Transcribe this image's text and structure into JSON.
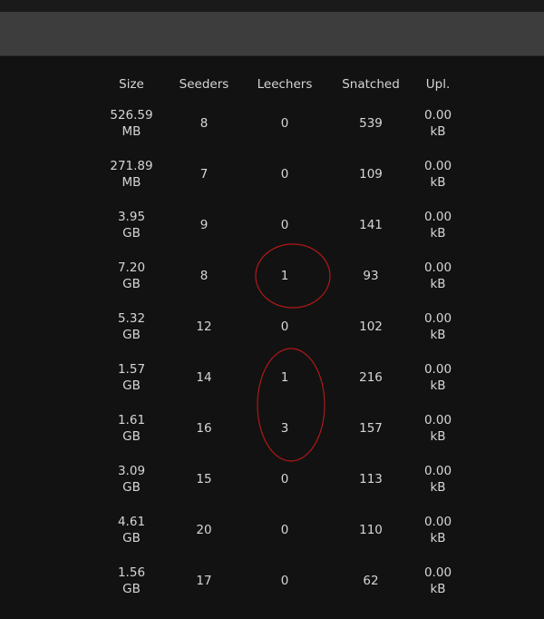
{
  "table": {
    "headers": [
      "Size",
      "Seeders",
      "Leechers",
      "Snatched",
      "Upl."
    ],
    "rows": [
      {
        "size": "526.59",
        "size_unit": "MB",
        "seeders": "8",
        "leechers": "0",
        "snatched": "539",
        "upl": "0.00",
        "upl_unit": "kB"
      },
      {
        "size": "271.89",
        "size_unit": "MB",
        "seeders": "7",
        "leechers": "0",
        "snatched": "109",
        "upl": "0.00",
        "upl_unit": "kB"
      },
      {
        "size": "3.95",
        "size_unit": "GB",
        "seeders": "9",
        "leechers": "0",
        "snatched": "141",
        "upl": "0.00",
        "upl_unit": "kB"
      },
      {
        "size": "7.20",
        "size_unit": "GB",
        "seeders": "8",
        "leechers": "1",
        "snatched": "93",
        "upl": "0.00",
        "upl_unit": "kB"
      },
      {
        "size": "5.32",
        "size_unit": "GB",
        "seeders": "12",
        "leechers": "0",
        "snatched": "102",
        "upl": "0.00",
        "upl_unit": "kB"
      },
      {
        "size": "1.57",
        "size_unit": "GB",
        "seeders": "14",
        "leechers": "1",
        "snatched": "216",
        "upl": "0.00",
        "upl_unit": "kB"
      },
      {
        "size": "1.61",
        "size_unit": "GB",
        "seeders": "16",
        "leechers": "3",
        "snatched": "157",
        "upl": "0.00",
        "upl_unit": "kB"
      },
      {
        "size": "3.09",
        "size_unit": "GB",
        "seeders": "15",
        "leechers": "0",
        "snatched": "113",
        "upl": "0.00",
        "upl_unit": "kB"
      },
      {
        "size": "4.61",
        "size_unit": "GB",
        "seeders": "20",
        "leechers": "0",
        "snatched": "110",
        "upl": "0.00",
        "upl_unit": "kB"
      },
      {
        "size": "1.56",
        "size_unit": "GB",
        "seeders": "17",
        "leechers": "0",
        "snatched": "62",
        "upl": "0.00",
        "upl_unit": "kB"
      }
    ]
  },
  "annotations": {
    "color": "#b01818"
  }
}
